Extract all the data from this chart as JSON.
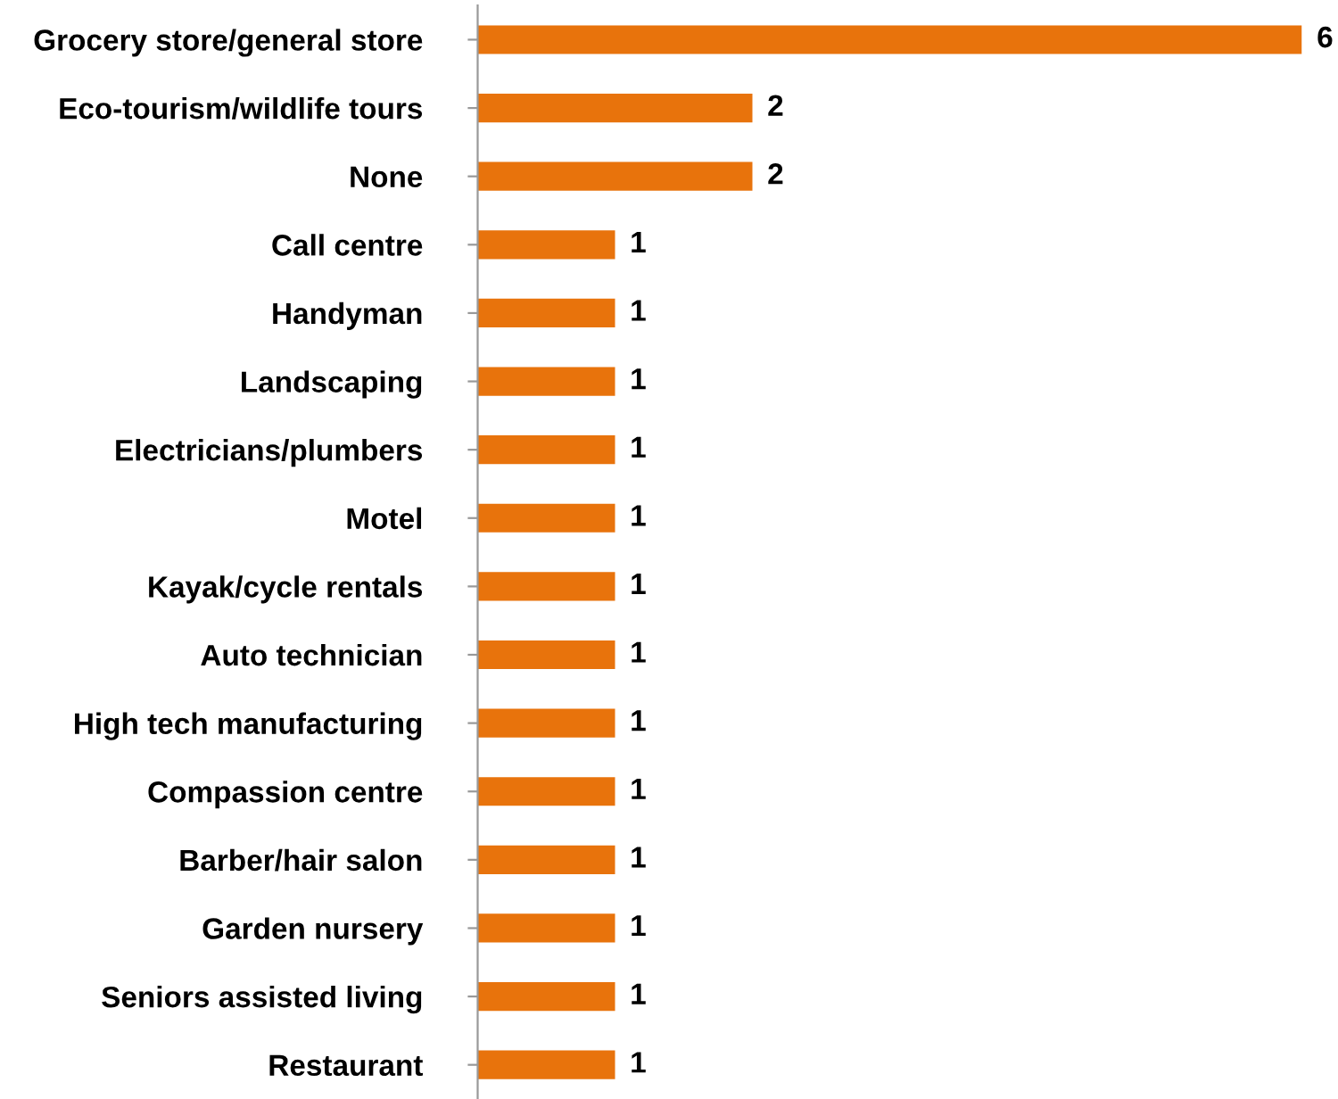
{
  "chart_data": {
    "type": "bar",
    "orientation": "horizontal",
    "categories": [
      "Grocery store/general store",
      "Eco-tourism/wildlife tours",
      "None",
      "Call centre",
      "Handyman",
      "Landscaping",
      "Electricians/plumbers",
      "Motel",
      "Kayak/cycle rentals",
      "Auto technician",
      "High tech manufacturing",
      "Compassion centre",
      "Barber/hair salon",
      "Garden nursery",
      "Seniors assisted living",
      "Restaurant"
    ],
    "values": [
      6,
      2,
      2,
      1,
      1,
      1,
      1,
      1,
      1,
      1,
      1,
      1,
      1,
      1,
      1,
      1
    ],
    "color": "#e8730c",
    "data_labels": true,
    "grid": false,
    "legend": false
  }
}
